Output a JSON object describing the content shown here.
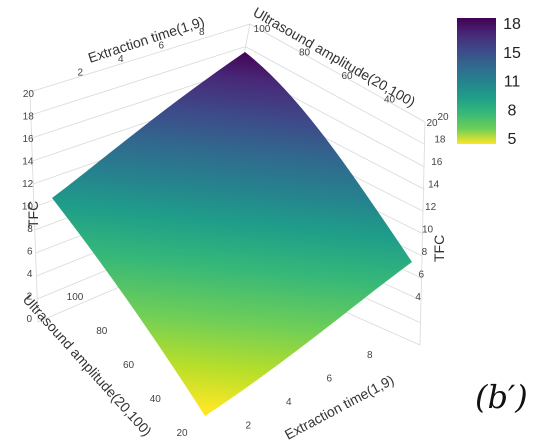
{
  "chart_data": {
    "type": "surface",
    "x": {
      "label": "Extraction time(1,9)",
      "ticks": [
        2,
        4,
        6,
        8
      ],
      "range": [
        1,
        9
      ]
    },
    "y": {
      "label": "Ultrasound amplitude(20,100)",
      "ticks": [
        20,
        40,
        60,
        80,
        100
      ],
      "range": [
        20,
        100
      ]
    },
    "z": {
      "label": "TFC",
      "ticks": [
        0,
        2,
        4,
        6,
        8,
        10,
        12,
        14,
        16,
        18,
        20
      ],
      "range": [
        0,
        20
      ]
    },
    "surface_corners": [
      {
        "extraction_time": 1,
        "ultrasound_amplitude": 20,
        "tfc": 5.5
      },
      {
        "extraction_time": 9,
        "ultrasound_amplitude": 20,
        "tfc": 8
      },
      {
        "extraction_time": 1,
        "ultrasound_amplitude": 100,
        "tfc": 12
      },
      {
        "extraction_time": 9,
        "ultrasound_amplitude": 100,
        "tfc": 18
      }
    ],
    "colorscale": "viridis",
    "colorbar": {
      "ticks": [
        "18",
        "15",
        "11",
        "8",
        "5"
      ],
      "range": [
        5,
        18
      ]
    },
    "colors": {
      "low": "#fde725",
      "mid": "#21918c",
      "high": "#440154"
    }
  },
  "panel_label": "(b′)"
}
